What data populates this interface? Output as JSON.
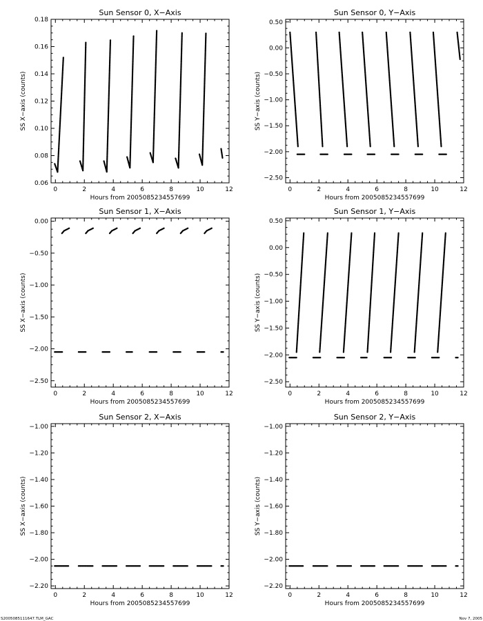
{
  "footer": {
    "left": "S2005085111647.TLM_GAC",
    "right": "Nov 7, 2005"
  },
  "chart_data": [
    {
      "type": "scatter",
      "title": "Sun Sensor 0, X−Axis",
      "xlabel": "Hours from 2005085234557699",
      "ylabel": "SS X−axis (counts)",
      "xlim": [
        -0.3,
        12
      ],
      "ylim": [
        0.06,
        0.18
      ],
      "xticks": [
        0,
        2,
        4,
        6,
        8,
        10,
        12
      ],
      "yticks": [
        0.06,
        0.08,
        0.1,
        0.12,
        0.14,
        0.16,
        0.18
      ],
      "ytick_labels": [
        "0.06",
        "0.08",
        "0.10",
        "0.12",
        "0.14",
        "0.16",
        "0.18"
      ],
      "segments": [
        {
          "x0": -0.05,
          "x1": 0.15,
          "y0": 0.074,
          "y1": 0.068
        },
        {
          "x0": 0.15,
          "x1": 0.55,
          "y0": 0.068,
          "y1": 0.152
        },
        {
          "x0": 1.7,
          "x1": 1.9,
          "y0": 0.076,
          "y1": 0.069
        },
        {
          "x0": 1.9,
          "x1": 2.1,
          "y0": 0.069,
          "y1": 0.163
        },
        {
          "x0": 3.35,
          "x1": 3.55,
          "y0": 0.076,
          "y1": 0.068
        },
        {
          "x0": 3.55,
          "x1": 3.8,
          "y0": 0.068,
          "y1": 0.165
        },
        {
          "x0": 4.95,
          "x1": 5.15,
          "y0": 0.079,
          "y1": 0.071
        },
        {
          "x0": 5.15,
          "x1": 5.4,
          "y0": 0.071,
          "y1": 0.168
        },
        {
          "x0": 6.55,
          "x1": 6.75,
          "y0": 0.082,
          "y1": 0.075
        },
        {
          "x0": 6.75,
          "x1": 7.0,
          "y0": 0.075,
          "y1": 0.172
        },
        {
          "x0": 8.3,
          "x1": 8.5,
          "y0": 0.078,
          "y1": 0.071
        },
        {
          "x0": 8.5,
          "x1": 8.75,
          "y0": 0.071,
          "y1": 0.17
        },
        {
          "x0": 9.95,
          "x1": 10.15,
          "y0": 0.081,
          "y1": 0.073
        },
        {
          "x0": 10.15,
          "x1": 10.4,
          "y0": 0.073,
          "y1": 0.17
        },
        {
          "x0": 11.45,
          "x1": 11.55,
          "y0": 0.085,
          "y1": 0.078
        }
      ]
    },
    {
      "type": "scatter",
      "title": "Sun Sensor 0, Y−Axis",
      "xlabel": "Hours from 2005085234557699",
      "ylabel": "SS Y−axis (counts)",
      "xlim": [
        -0.3,
        12
      ],
      "ylim": [
        -2.6,
        0.55
      ],
      "xticks": [
        0,
        2,
        4,
        6,
        8,
        10,
        12
      ],
      "yticks": [
        -2.5,
        -2.0,
        -1.5,
        -1.0,
        -0.5,
        0.0,
        0.5
      ],
      "ytick_labels": [
        "−2.50",
        "−2.00",
        "−1.50",
        "−1.00",
        "−0.50",
        "0.00",
        "0.50"
      ],
      "segments": [
        {
          "x0": 0.0,
          "x1": 0.55,
          "y0": 0.3,
          "y1": -1.9
        },
        {
          "x0": 1.8,
          "x1": 2.25,
          "y0": 0.3,
          "y1": -1.9
        },
        {
          "x0": 3.4,
          "x1": 3.95,
          "y0": 0.3,
          "y1": -1.9
        },
        {
          "x0": 5.0,
          "x1": 5.55,
          "y0": 0.3,
          "y1": -1.9
        },
        {
          "x0": 6.65,
          "x1": 7.2,
          "y0": 0.3,
          "y1": -1.9
        },
        {
          "x0": 8.3,
          "x1": 8.85,
          "y0": 0.3,
          "y1": -1.9
        },
        {
          "x0": 9.9,
          "x1": 10.45,
          "y0": 0.3,
          "y1": -1.9
        },
        {
          "x0": 11.55,
          "x1": 11.75,
          "y0": 0.3,
          "y1": -0.22
        },
        {
          "x0": 0.5,
          "x1": 1.0,
          "y0": -2.05,
          "y1": -2.05
        },
        {
          "x0": 2.1,
          "x1": 2.6,
          "y0": -2.05,
          "y1": -2.05
        },
        {
          "x0": 3.75,
          "x1": 4.25,
          "y0": -2.05,
          "y1": -2.05
        },
        {
          "x0": 5.35,
          "x1": 5.85,
          "y0": -2.05,
          "y1": -2.05
        },
        {
          "x0": 7.0,
          "x1": 7.5,
          "y0": -2.05,
          "y1": -2.05
        },
        {
          "x0": 8.65,
          "x1": 9.15,
          "y0": -2.05,
          "y1": -2.05
        },
        {
          "x0": 10.3,
          "x1": 10.8,
          "y0": -2.05,
          "y1": -2.05
        }
      ]
    },
    {
      "type": "scatter",
      "title": "Sun Sensor 1, X−Axis",
      "xlabel": "Hours from 2005085234557699",
      "ylabel": "SS X−axis (counts)",
      "xlim": [
        -0.3,
        12
      ],
      "ylim": [
        -2.6,
        0.05
      ],
      "xticks": [
        0,
        2,
        4,
        6,
        8,
        10,
        12
      ],
      "yticks": [
        -2.5,
        -2.0,
        -1.5,
        -1.0,
        -0.5,
        0.0
      ],
      "ytick_labels": [
        "−2.50",
        "−2.00",
        "−1.50",
        "−1.00",
        "−0.50",
        "0.00"
      ],
      "segments": [
        {
          "x0": 0.45,
          "x1": 0.6,
          "y0": -0.19,
          "y1": -0.15
        },
        {
          "x0": 0.6,
          "x1": 0.95,
          "y0": -0.15,
          "y1": -0.11
        },
        {
          "x0": 2.1,
          "x1": 2.25,
          "y0": -0.19,
          "y1": -0.15
        },
        {
          "x0": 2.25,
          "x1": 2.6,
          "y0": -0.15,
          "y1": -0.11
        },
        {
          "x0": 3.75,
          "x1": 3.9,
          "y0": -0.19,
          "y1": -0.15
        },
        {
          "x0": 3.9,
          "x1": 4.25,
          "y0": -0.15,
          "y1": -0.11
        },
        {
          "x0": 5.35,
          "x1": 5.5,
          "y0": -0.19,
          "y1": -0.15
        },
        {
          "x0": 5.5,
          "x1": 5.85,
          "y0": -0.15,
          "y1": -0.11
        },
        {
          "x0": 7.0,
          "x1": 7.15,
          "y0": -0.19,
          "y1": -0.15
        },
        {
          "x0": 7.15,
          "x1": 7.5,
          "y0": -0.15,
          "y1": -0.11
        },
        {
          "x0": 8.65,
          "x1": 8.8,
          "y0": -0.19,
          "y1": -0.15
        },
        {
          "x0": 8.8,
          "x1": 9.15,
          "y0": -0.15,
          "y1": -0.11
        },
        {
          "x0": 10.3,
          "x1": 10.45,
          "y0": -0.19,
          "y1": -0.15
        },
        {
          "x0": 10.45,
          "x1": 10.8,
          "y0": -0.15,
          "y1": -0.11
        },
        {
          "x0": -0.05,
          "x1": 0.5,
          "y0": -2.05,
          "y1": -2.05
        },
        {
          "x0": 1.6,
          "x1": 2.1,
          "y0": -2.05,
          "y1": -2.05
        },
        {
          "x0": 3.25,
          "x1": 3.75,
          "y0": -2.05,
          "y1": -2.05
        },
        {
          "x0": 4.9,
          "x1": 5.35,
          "y0": -2.05,
          "y1": -2.05
        },
        {
          "x0": 6.5,
          "x1": 7.0,
          "y0": -2.05,
          "y1": -2.05
        },
        {
          "x0": 8.15,
          "x1": 8.65,
          "y0": -2.05,
          "y1": -2.05
        },
        {
          "x0": 9.8,
          "x1": 10.3,
          "y0": -2.05,
          "y1": -2.05
        },
        {
          "x0": 11.45,
          "x1": 11.6,
          "y0": -2.05,
          "y1": -2.05
        }
      ]
    },
    {
      "type": "scatter",
      "title": "Sun Sensor 1, Y−Axis",
      "xlabel": "Hours from 2005085234557699",
      "ylabel": "SS Y−axis (counts)",
      "xlim": [
        -0.3,
        12
      ],
      "ylim": [
        -2.6,
        0.55
      ],
      "xticks": [
        0,
        2,
        4,
        6,
        8,
        10,
        12
      ],
      "yticks": [
        -2.5,
        -2.0,
        -1.5,
        -1.0,
        -0.5,
        0.0,
        0.5
      ],
      "ytick_labels": [
        "−2.50",
        "−2.00",
        "−1.50",
        "−1.00",
        "−0.50",
        "0.00",
        "0.50"
      ],
      "segments": [
        {
          "x0": 0.45,
          "x1": 0.95,
          "y0": -1.95,
          "y1": 0.27
        },
        {
          "x0": 2.05,
          "x1": 2.6,
          "y0": -1.95,
          "y1": 0.27
        },
        {
          "x0": 3.7,
          "x1": 4.25,
          "y0": -1.95,
          "y1": 0.27
        },
        {
          "x0": 5.35,
          "x1": 5.85,
          "y0": -1.95,
          "y1": 0.27
        },
        {
          "x0": 6.95,
          "x1": 7.5,
          "y0": -1.95,
          "y1": 0.27
        },
        {
          "x0": 8.6,
          "x1": 9.15,
          "y0": -1.95,
          "y1": 0.27
        },
        {
          "x0": 10.2,
          "x1": 10.75,
          "y0": -1.95,
          "y1": 0.27
        },
        {
          "x0": -0.05,
          "x1": 0.45,
          "y0": -2.05,
          "y1": -2.05
        },
        {
          "x0": 1.6,
          "x1": 2.1,
          "y0": -2.05,
          "y1": -2.05
        },
        {
          "x0": 3.25,
          "x1": 3.75,
          "y0": -2.05,
          "y1": -2.05
        },
        {
          "x0": 4.9,
          "x1": 5.35,
          "y0": -2.05,
          "y1": -2.05
        },
        {
          "x0": 6.5,
          "x1": 7.0,
          "y0": -2.05,
          "y1": -2.05
        },
        {
          "x0": 8.15,
          "x1": 8.65,
          "y0": -2.05,
          "y1": -2.05
        },
        {
          "x0": 9.8,
          "x1": 10.3,
          "y0": -2.05,
          "y1": -2.05
        },
        {
          "x0": 11.45,
          "x1": 11.6,
          "y0": -2.05,
          "y1": -2.05
        }
      ]
    },
    {
      "type": "scatter",
      "title": "Sun Sensor 2, X−Axis",
      "xlabel": "Hours from 2005085234557699",
      "ylabel": "SS X−axis (counts)",
      "xlim": [
        -0.3,
        12
      ],
      "ylim": [
        -2.22,
        -0.98
      ],
      "xticks": [
        0,
        2,
        4,
        6,
        8,
        10,
        12
      ],
      "yticks": [
        -2.2,
        -2.0,
        -1.8,
        -1.6,
        -1.4,
        -1.2,
        -1.0
      ],
      "ytick_labels": [
        "−2.20",
        "−2.00",
        "−1.80",
        "−1.60",
        "−1.40",
        "−1.20",
        "−1.00"
      ],
      "segments": [
        {
          "x0": -0.05,
          "x1": 0.9,
          "y0": -2.05,
          "y1": -2.05
        },
        {
          "x0": 1.6,
          "x1": 2.6,
          "y0": -2.05,
          "y1": -2.05
        },
        {
          "x0": 3.25,
          "x1": 4.25,
          "y0": -2.05,
          "y1": -2.05
        },
        {
          "x0": 4.9,
          "x1": 5.85,
          "y0": -2.05,
          "y1": -2.05
        },
        {
          "x0": 6.5,
          "x1": 7.5,
          "y0": -2.05,
          "y1": -2.05
        },
        {
          "x0": 8.15,
          "x1": 9.15,
          "y0": -2.05,
          "y1": -2.05
        },
        {
          "x0": 9.8,
          "x1": 10.8,
          "y0": -2.05,
          "y1": -2.05
        },
        {
          "x0": 11.45,
          "x1": 11.6,
          "y0": -2.05,
          "y1": -2.05
        }
      ]
    },
    {
      "type": "scatter",
      "title": "Sun Sensor 2, Y−Axis",
      "xlabel": "Hours from 2005085234557699",
      "ylabel": "SS Y−axis (counts)",
      "xlim": [
        -0.3,
        12
      ],
      "ylim": [
        -2.22,
        -0.98
      ],
      "xticks": [
        0,
        2,
        4,
        6,
        8,
        10,
        12
      ],
      "yticks": [
        -2.2,
        -2.0,
        -1.8,
        -1.6,
        -1.4,
        -1.2,
        -1.0
      ],
      "ytick_labels": [
        "−2.20",
        "−2.00",
        "−1.80",
        "−1.60",
        "−1.40",
        "−1.20",
        "−1.00"
      ],
      "segments": [
        {
          "x0": -0.05,
          "x1": 0.9,
          "y0": -2.05,
          "y1": -2.05
        },
        {
          "x0": 1.6,
          "x1": 2.6,
          "y0": -2.05,
          "y1": -2.05
        },
        {
          "x0": 3.25,
          "x1": 4.25,
          "y0": -2.05,
          "y1": -2.05
        },
        {
          "x0": 4.9,
          "x1": 5.85,
          "y0": -2.05,
          "y1": -2.05
        },
        {
          "x0": 6.5,
          "x1": 7.5,
          "y0": -2.05,
          "y1": -2.05
        },
        {
          "x0": 8.15,
          "x1": 9.15,
          "y0": -2.05,
          "y1": -2.05
        },
        {
          "x0": 9.8,
          "x1": 10.8,
          "y0": -2.05,
          "y1": -2.05
        },
        {
          "x0": 11.45,
          "x1": 11.6,
          "y0": -2.05,
          "y1": -2.05
        }
      ]
    }
  ]
}
